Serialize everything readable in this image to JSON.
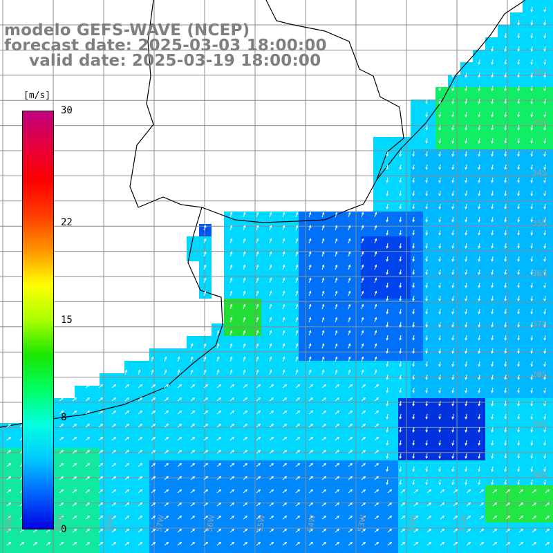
{
  "title": {
    "line1": "modelo GEFS-WAVE (NCEP)",
    "line2": "forecast date: 2025-03-03 18:00:00",
    "line3": "valid date: 2025-03-19 18:00:00"
  },
  "colorbar": {
    "unit": "[m/s]",
    "ticks": [
      {
        "label": "30",
        "value": 30
      },
      {
        "label": "22",
        "value": 22
      },
      {
        "label": "15",
        "value": 15
      },
      {
        "label": "8",
        "value": 8
      },
      {
        "label": "0",
        "value": 0
      }
    ],
    "range": [
      0,
      30
    ],
    "colors": [
      "#0000e0",
      "#0064ff",
      "#00c8ff",
      "#00ffe0",
      "#00ff64",
      "#19e600",
      "#aaff00",
      "#ffff00",
      "#ff9600",
      "#ff3c00",
      "#ff0000",
      "#e6003c",
      "#c00080"
    ]
  },
  "map": {
    "variable": "wind speed and direction",
    "longitude_labels": [
      "60W",
      "59W",
      "58W",
      "57W",
      "56W",
      "55W",
      "54W",
      "53W",
      "52W",
      "51W"
    ],
    "latitude_labels": [
      "32S",
      "33S",
      "34S",
      "35S",
      "36S",
      "37S",
      "38S",
      "39S",
      "40S"
    ],
    "ocean_color": "#00c8ff",
    "land_color": "#ffffff",
    "coast_color": "#000000",
    "grid_color": "#8c8c8c",
    "arrow_color": "#ffffff",
    "label_color": "#a0a0a0"
  }
}
